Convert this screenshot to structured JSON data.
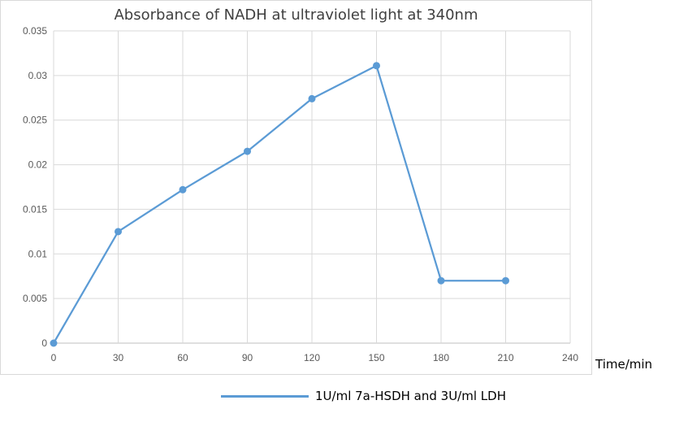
{
  "chart_data": {
    "type": "line",
    "title": "Absorbance of NADH at ultraviolet light at 340nm",
    "xlabel": "Time/min",
    "ylabel": "",
    "x": [
      0,
      30,
      60,
      90,
      120,
      150,
      180,
      210
    ],
    "series": [
      {
        "name": "1U/ml 7a-HSDH and 3U/ml LDH",
        "values": [
          0,
          0.0125,
          0.0172,
          0.0215,
          0.0274,
          0.0311,
          0.007,
          0.007
        ],
        "color": "#5b9bd5"
      }
    ],
    "xlim": [
      0,
      240
    ],
    "ylim": [
      0,
      0.035
    ],
    "x_ticks": [
      "0",
      "30",
      "60",
      "90",
      "120",
      "150",
      "180",
      "210",
      "240"
    ],
    "y_ticks": [
      "0",
      "0.005",
      "0.01",
      "0.015",
      "0.02",
      "0.025",
      "0.03",
      "0.035"
    ],
    "grid": "both",
    "legend_position": "bottom"
  }
}
